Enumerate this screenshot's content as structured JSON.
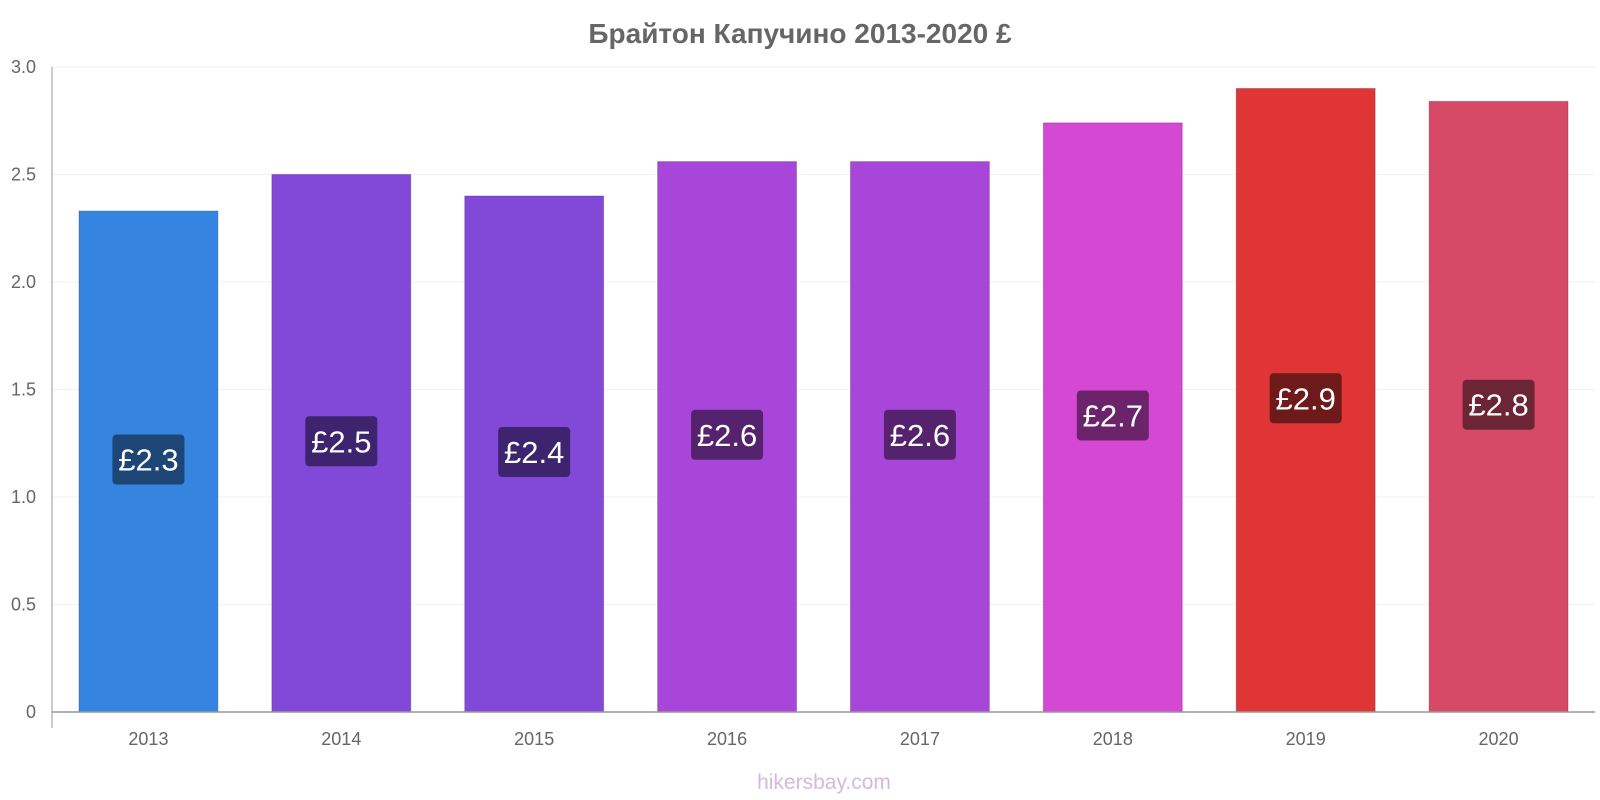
{
  "watermark": "hikersbay.com",
  "chart_data": {
    "type": "bar",
    "title": "Брайтон Капучино 2013-2020 £",
    "xlabel": "",
    "ylabel": "",
    "ylim": [
      0,
      3.0
    ],
    "yticks": [
      {
        "value": 0,
        "label": "0"
      },
      {
        "value": 0.5,
        "label": "0.5"
      },
      {
        "value": 1.0,
        "label": "1.0"
      },
      {
        "value": 1.5,
        "label": "1.5"
      },
      {
        "value": 2.0,
        "label": "2.0"
      },
      {
        "value": 2.5,
        "label": "2.5"
      },
      {
        "value": 3.0,
        "label": "3.0"
      }
    ],
    "grid": true,
    "legend": "none",
    "categories": [
      "2013",
      "2014",
      "2015",
      "2016",
      "2017",
      "2018",
      "2019",
      "2020"
    ],
    "values": [
      2.33,
      2.5,
      2.4,
      2.56,
      2.56,
      2.74,
      2.9,
      2.84
    ],
    "data_labels": [
      "£2.3",
      "£2.5",
      "£2.4",
      "£2.6",
      "£2.6",
      "£2.7",
      "£2.9",
      "£2.8"
    ],
    "bar_colors": [
      "#3584e0",
      "#8249d8",
      "#8249d8",
      "#a746d8",
      "#a746d8",
      "#d548d4",
      "#e03535",
      "#d64a68"
    ],
    "label_bg_colors": [
      "#1d4575",
      "#3e236e",
      "#3e236e",
      "#55236e",
      "#55236e",
      "#6b236b",
      "#6e1a1a",
      "#6b2535"
    ]
  }
}
